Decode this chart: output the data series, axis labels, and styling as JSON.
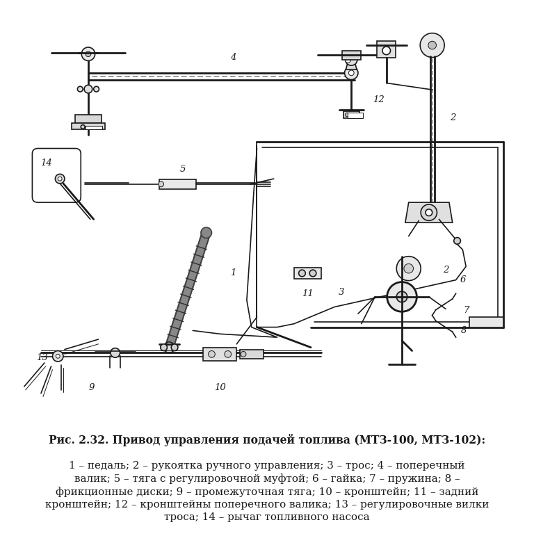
{
  "fig_width": 7.68,
  "fig_height": 7.81,
  "dpi": 100,
  "background_color": "#ffffff",
  "caption_title": "Рис. 2.32. Привод управления подачей топлива (МТЗ-100, МТЗ-102):",
  "caption_body": "1 – педаль; 2 – рукоятка ручного управления; 3 – трос; 4 – поперечный валик; 5 – тяга с регулировочной муфтой; 6 – гайка; 7 – пружина; 8 – фрикционные диски; 9 – промежуточная тяга; 10 – кронштейн; 11 – задний кронштейн; 12 – кронштейны поперечного валика; 13 – регулировочные вилки троса; 14 – рычаг топливного насоса",
  "lc": "#1a1a1a",
  "lw1": 1.2,
  "lw2": 2.0,
  "lw3": 0.7,
  "fs_label": 9.5,
  "fs_caption": 11.2
}
